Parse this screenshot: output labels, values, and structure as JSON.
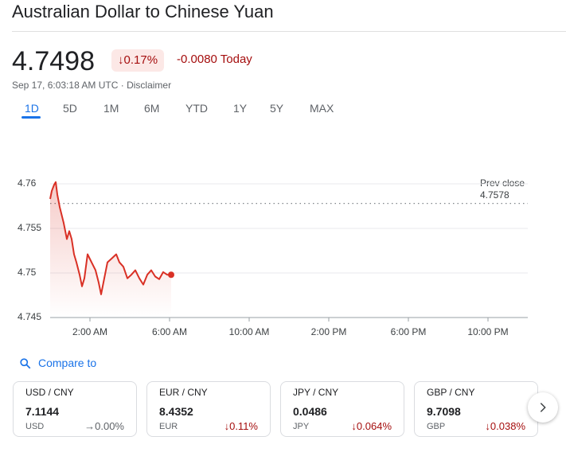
{
  "header": {
    "title": "Australian Dollar to Chinese Yuan"
  },
  "quote": {
    "price": "4.7498",
    "change_percent": "↓0.17%",
    "change": "-0.0080 Today",
    "timestamp": "Sep 17, 6:03:18 AM UTC",
    "disclaimer": "Disclaimer"
  },
  "tabs": [
    "1D",
    "5D",
    "1M",
    "6M",
    "YTD",
    "1Y",
    "5Y",
    "MAX"
  ],
  "chart_data": {
    "type": "line",
    "x": [
      0,
      0.08,
      0.2,
      0.28,
      0.36,
      0.48,
      0.68,
      0.84,
      0.96,
      1.08,
      1.2,
      1.32,
      1.48,
      1.6,
      1.72,
      1.88,
      2.08,
      2.28,
      2.44,
      2.56,
      2.72,
      2.88,
      3.08,
      3.32,
      3.48,
      3.68,
      3.88,
      4.08,
      4.28,
      4.48,
      4.68,
      4.88,
      5.08,
      5.28,
      5.48,
      5.68,
      5.88,
      6.08
    ],
    "values": [
      4.7583,
      4.7592,
      4.7599,
      4.7602,
      4.7588,
      4.7574,
      4.7556,
      4.7538,
      4.7547,
      4.7538,
      4.7521,
      4.7512,
      4.7498,
      4.7485,
      4.7494,
      4.7521,
      4.7512,
      4.7503,
      4.7489,
      4.7476,
      4.7494,
      4.7512,
      4.7516,
      4.7521,
      4.7512,
      4.7507,
      4.7494,
      4.7498,
      4.7503,
      4.7494,
      4.7487,
      4.7498,
      4.7503,
      4.7496,
      4.7493,
      4.7501,
      4.7498,
      4.7498
    ],
    "color": "#d93025",
    "xlim": [
      0,
      24
    ],
    "xticks": [
      {
        "value": 2,
        "label": "2:00 AM"
      },
      {
        "value": 6,
        "label": "6:00 AM"
      },
      {
        "value": 10,
        "label": "10:00 AM"
      },
      {
        "value": 14,
        "label": "2:00 PM"
      },
      {
        "value": 18,
        "label": "6:00 PM"
      },
      {
        "value": 22,
        "label": "10:00 PM"
      }
    ],
    "ylim": [
      4.745,
      4.76
    ],
    "yticks": [
      4.745,
      4.75,
      4.755,
      4.76
    ],
    "grid": true,
    "prev_close_label": "Prev close",
    "prev_close": 4.7578
  },
  "compare": {
    "label": "Compare to"
  },
  "cards": [
    {
      "pair": "USD / CNY",
      "price": "7.1144",
      "currency": "USD",
      "change": "→0.00%"
    },
    {
      "pair": "EUR / CNY",
      "price": "8.4352",
      "currency": "EUR",
      "change": "↓0.11%"
    },
    {
      "pair": "JPY / CNY",
      "price": "0.0486",
      "currency": "JPY",
      "change": "↓0.064%"
    },
    {
      "pair": "GBP / CNY",
      "price": "9.7098",
      "currency": "GBP",
      "change": "↓0.038%"
    }
  ]
}
